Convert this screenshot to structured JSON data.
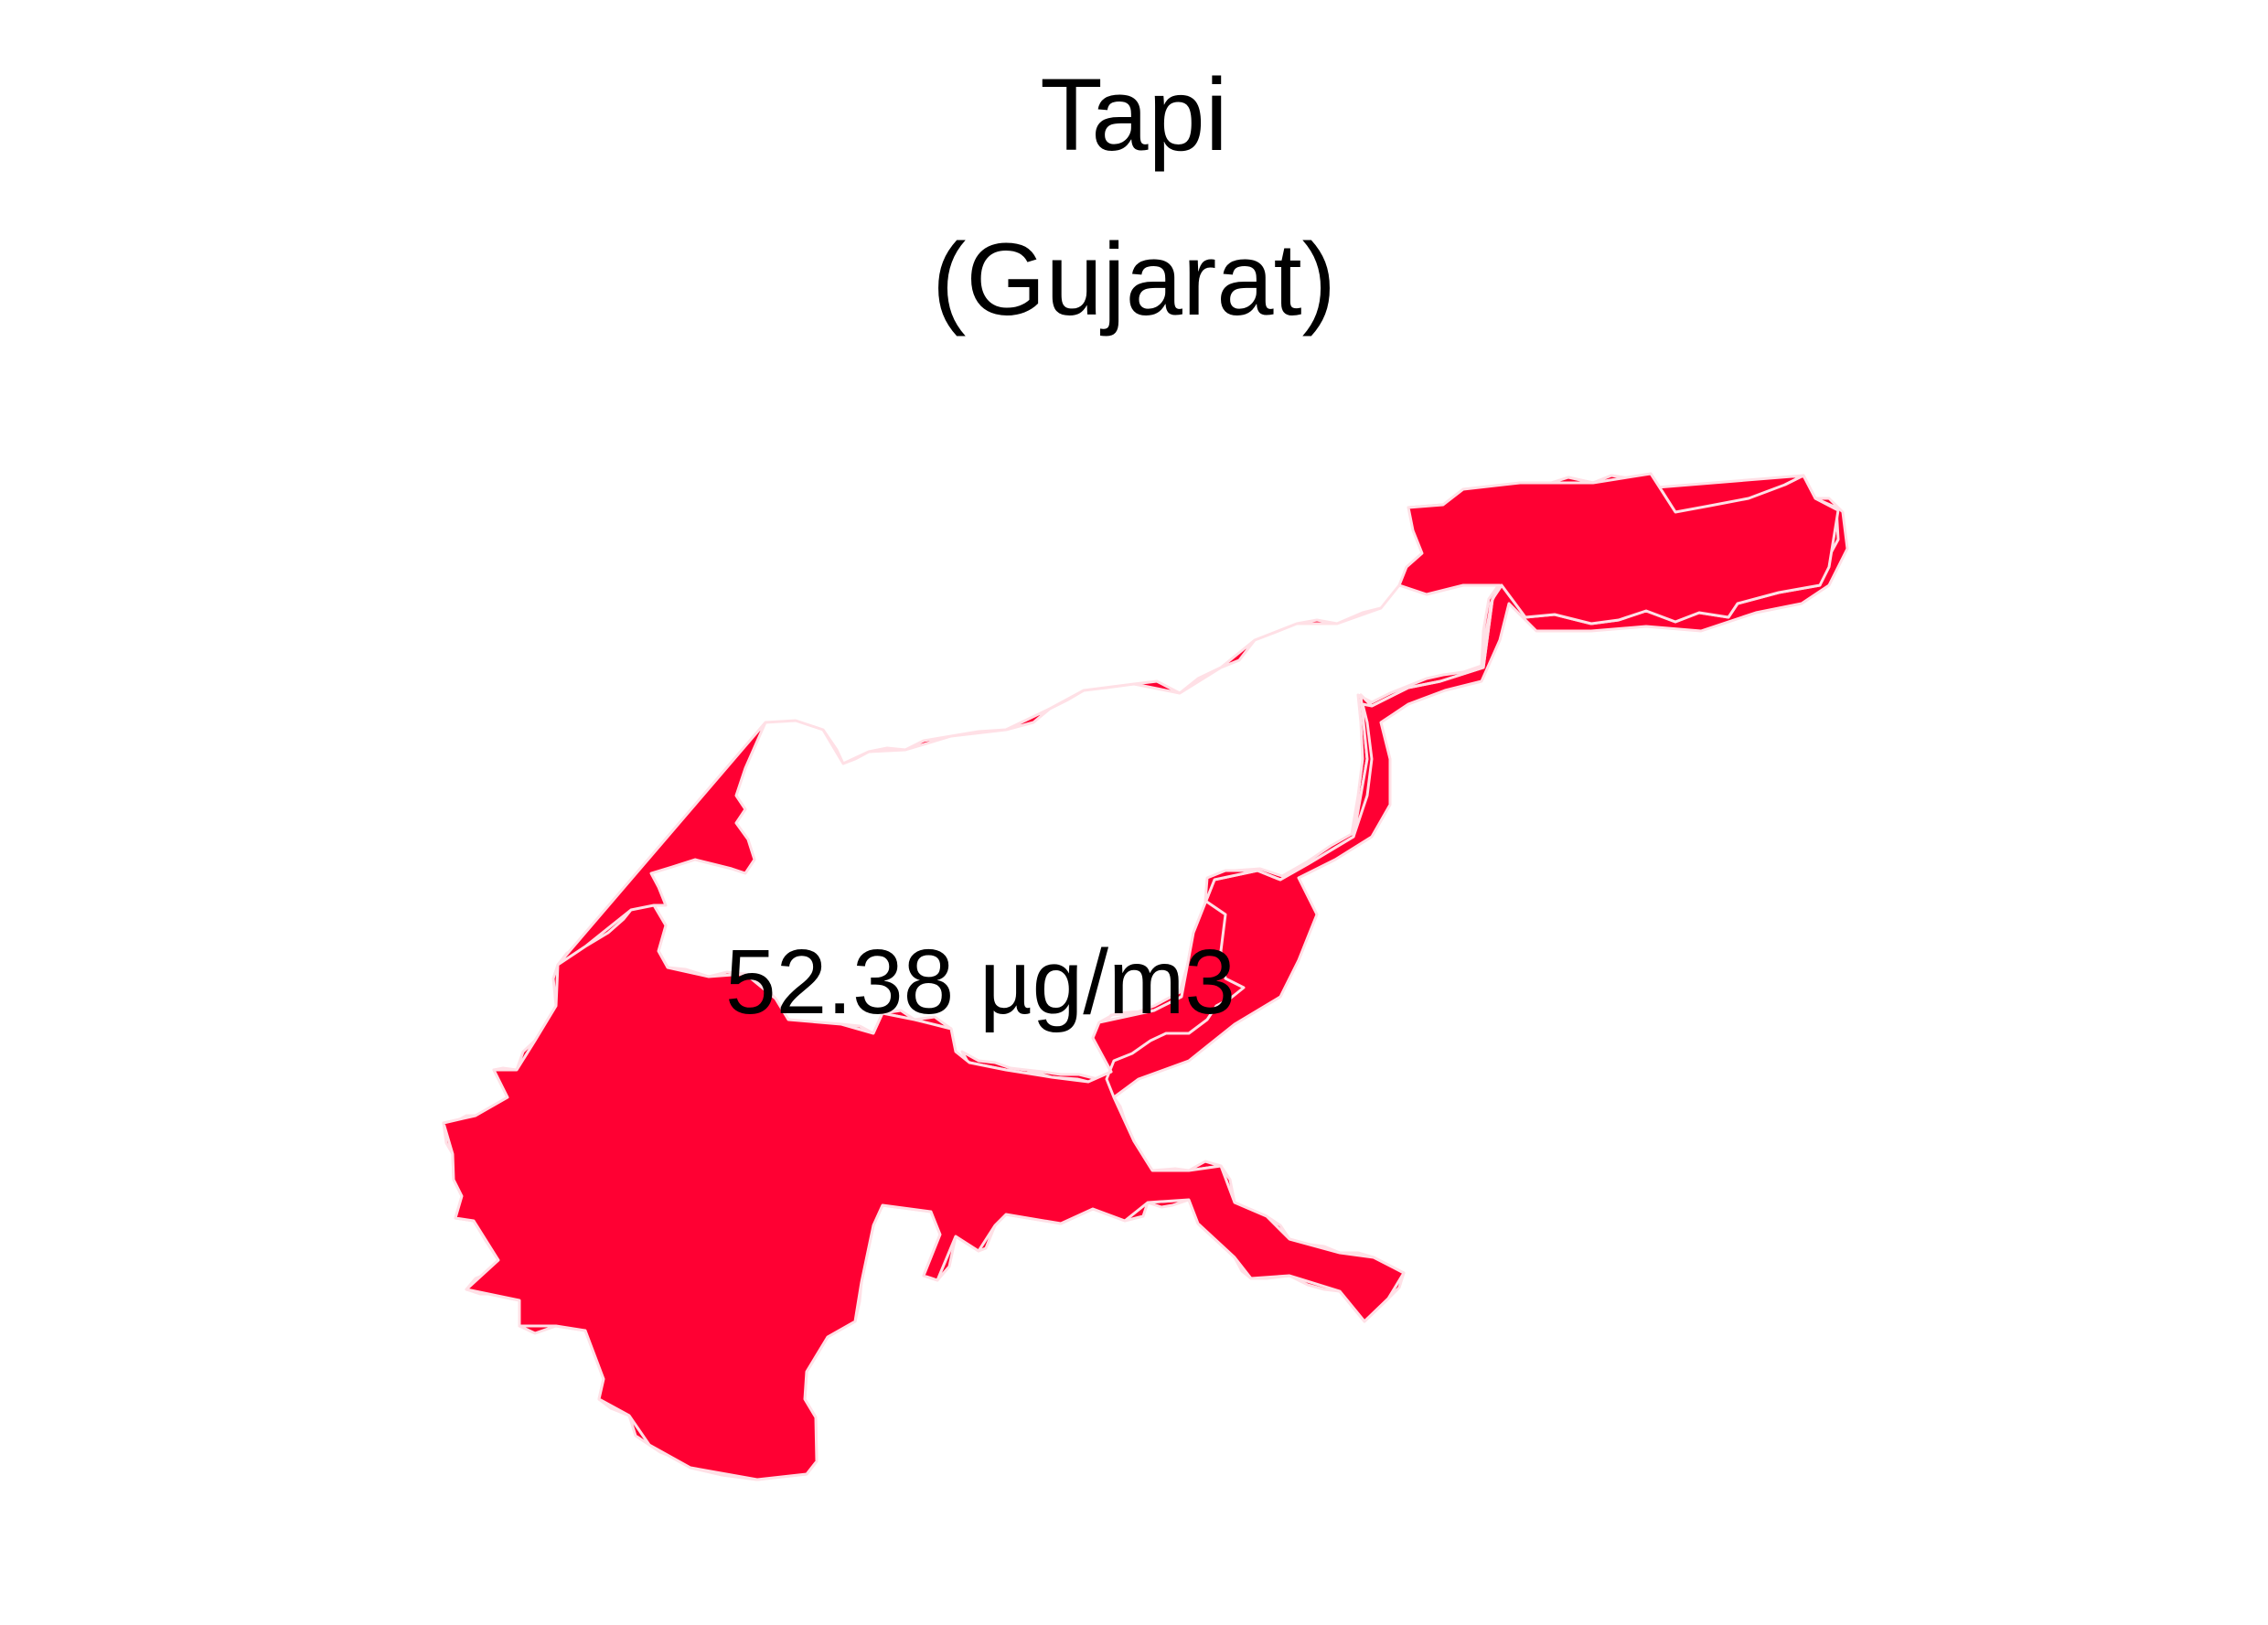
{
  "map": {
    "title_line_1": "Tapi",
    "title_line_2": "(Gujarat)",
    "region_label": "52.38 µg/m3",
    "fill_color": "#ff0033",
    "background_color": "#ffffff",
    "text_color": "#000000"
  }
}
